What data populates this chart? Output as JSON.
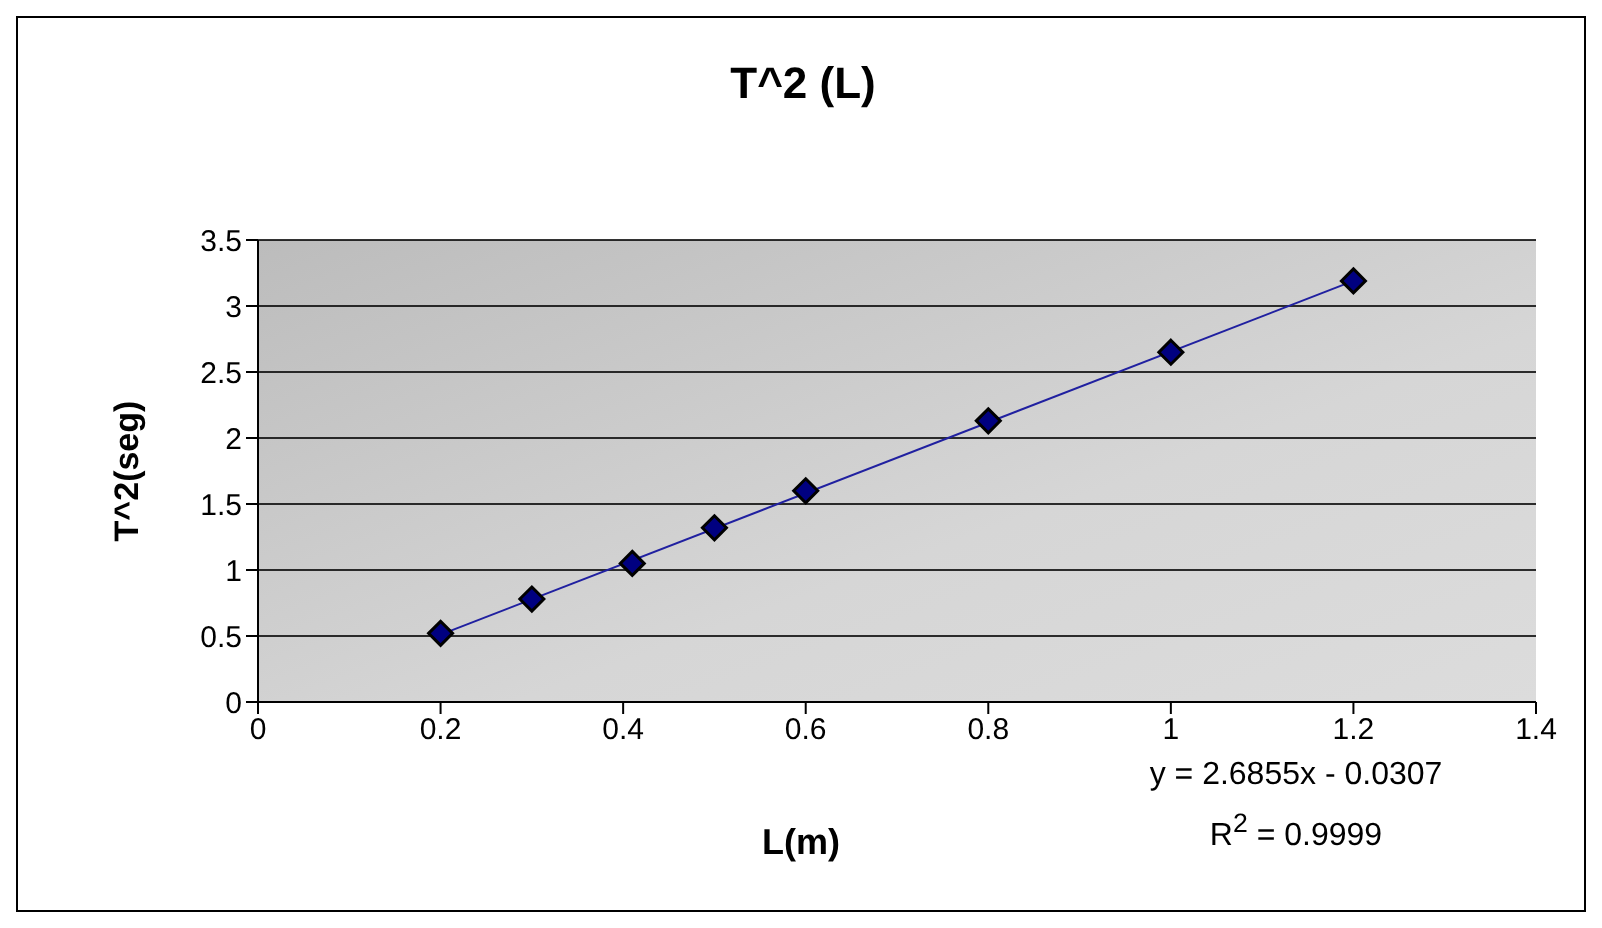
{
  "chart_data": {
    "type": "scatter",
    "title": "T^2 (L)",
    "xlabel": "L(m)",
    "ylabel": "T^2(seg)",
    "annotations": [
      "y = 2.6855x - 0.0307",
      "R$^{2}$ = 0.9999"
    ],
    "series": [
      {
        "color": "#000080",
        "marker": "diamond",
        "x": [
          0.2,
          0.3,
          0.41,
          0.5,
          0.6,
          0.8,
          1.0,
          1.2
        ],
        "values": [
          0.52,
          0.78,
          1.05,
          1.32,
          1.6,
          2.13,
          2.65,
          3.19
        ]
      },
      {
        "type": "line",
        "color": "#2020a0",
        "marker": "none",
        "x": [
          0.2,
          1.2
        ],
        "values": [
          0.51,
          3.19
        ]
      }
    ],
    "xlim": [
      0,
      1.4
    ],
    "xticks": [
      0,
      0.2,
      0.4,
      0.6,
      0.8,
      1,
      1.2,
      1.4
    ],
    "ylim": [
      0,
      3.5
    ],
    "yticks": [
      0,
      0.5,
      1,
      1.5,
      2,
      2.5,
      3,
      3.5
    ],
    "grid": "y"
  }
}
